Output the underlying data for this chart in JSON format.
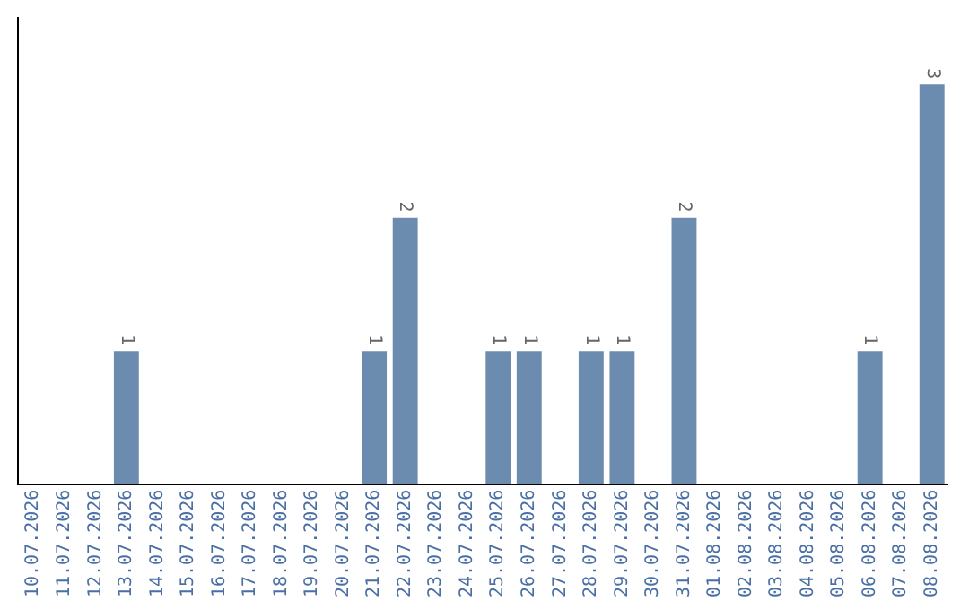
{
  "chart_data": {
    "type": "bar",
    "categories": [
      "10.07.2026",
      "11.07.2026",
      "12.07.2026",
      "13.07.2026",
      "14.07.2026",
      "15.07.2026",
      "16.07.2026",
      "17.07.2026",
      "18.07.2026",
      "19.07.2026",
      "20.07.2026",
      "21.07.2026",
      "22.07.2026",
      "23.07.2026",
      "24.07.2026",
      "25.07.2026",
      "26.07.2026",
      "27.07.2026",
      "28.07.2026",
      "29.07.2026",
      "30.07.2026",
      "31.07.2026",
      "01.08.2026",
      "02.08.2026",
      "03.08.2026",
      "04.08.2026",
      "05.08.2026",
      "06.08.2026",
      "07.08.2026",
      "08.08.2026"
    ],
    "values": [
      0,
      0,
      0,
      1,
      0,
      0,
      0,
      0,
      0,
      0,
      0,
      1,
      2,
      0,
      0,
      1,
      1,
      0,
      1,
      1,
      0,
      2,
      0,
      0,
      0,
      0,
      0,
      1,
      0,
      3
    ],
    "value_labels": [
      null,
      null,
      null,
      "1",
      null,
      null,
      null,
      null,
      null,
      null,
      null,
      "1",
      "2",
      null,
      null,
      "1",
      "1",
      null,
      "1",
      "1",
      null,
      "2",
      null,
      null,
      null,
      null,
      null,
      "1",
      null,
      "3"
    ],
    "color": "#6b8cae",
    "grid": false,
    "legend": false,
    "tick_labels": "x"
  }
}
